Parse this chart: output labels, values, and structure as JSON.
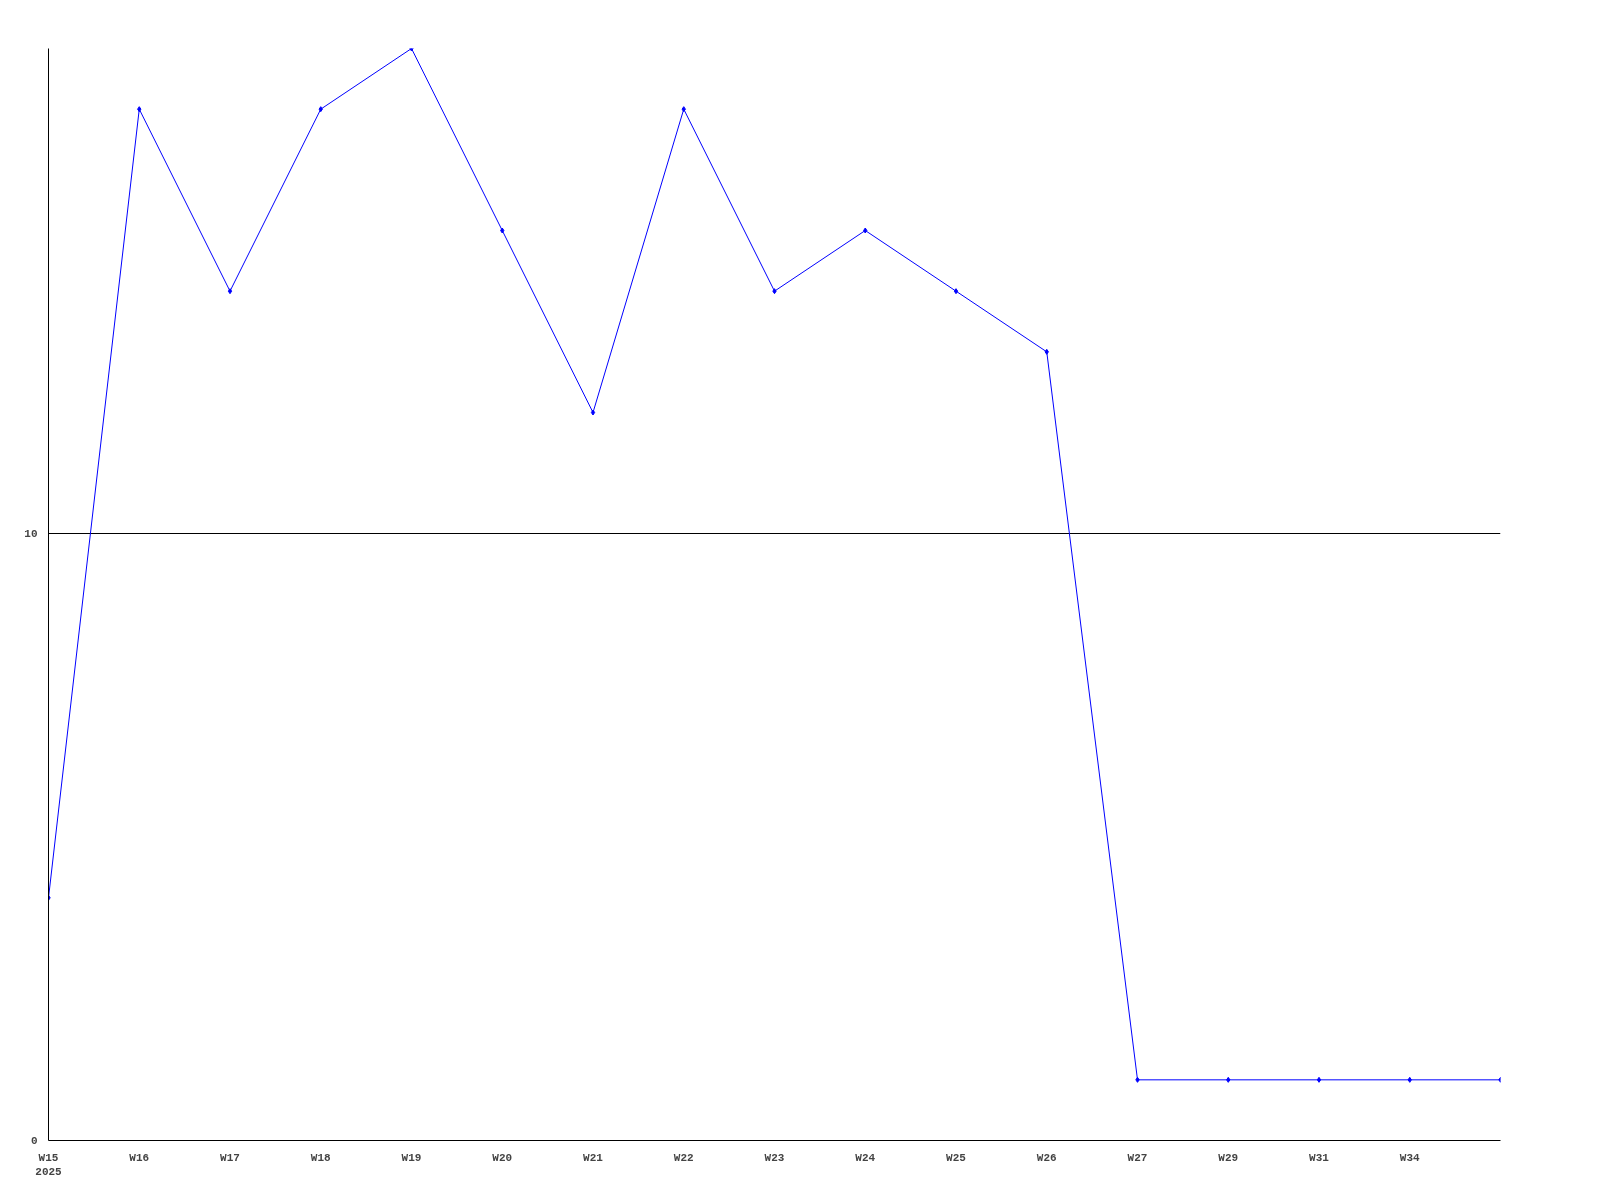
{
  "chart_data": {
    "type": "line",
    "categories": [
      "W15\n2025",
      "W16",
      "W17",
      "W18",
      "W19",
      "W20",
      "W21",
      "W22",
      "W23",
      "W24",
      "W25",
      "W26",
      "W27",
      "W29",
      "W31",
      "W34",
      null
    ],
    "series": [
      {
        "color": "#0000ff",
        "values": [
          4,
          17,
          14,
          17,
          18,
          15,
          12,
          17,
          14,
          15,
          14,
          13,
          1,
          1,
          1,
          1,
          1
        ]
      }
    ],
    "ylim": [
      0,
      18
    ],
    "yticks": [
      0,
      10
    ],
    "grid": "y",
    "marker": "diamond",
    "line_style": "solid"
  }
}
